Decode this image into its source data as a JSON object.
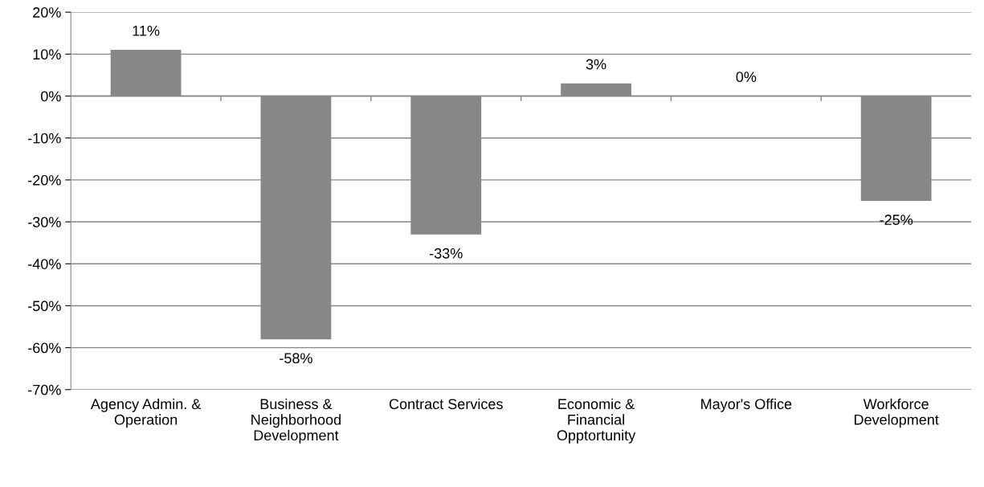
{
  "chart_data": {
    "type": "bar",
    "categories": [
      "Agency Admin. &\nOperation",
      "Business &\nNeighborhood\nDevelopment",
      "Contract Services",
      "Economic &\nFinancial\nOpptortunity",
      "Mayor's Office",
      "Workforce\nDevelopment"
    ],
    "values": [
      11,
      -58,
      -33,
      3,
      0,
      -25
    ],
    "value_labels": [
      "11%",
      "-58%",
      "-33%",
      "3%",
      "0%",
      "-25%"
    ],
    "color": "#878787",
    "ylim": [
      -70,
      20
    ],
    "yticks": [
      {
        "value": -70,
        "label": "-70%"
      },
      {
        "value": -60,
        "label": "-60%"
      },
      {
        "value": -50,
        "label": "-50%"
      },
      {
        "value": -40,
        "label": "-40%"
      },
      {
        "value": -30,
        "label": "-30%"
      },
      {
        "value": -20,
        "label": "-20%"
      },
      {
        "value": -10,
        "label": "-10%"
      },
      {
        "value": 0,
        "label": "0%"
      },
      {
        "value": 10,
        "label": "10%"
      },
      {
        "value": 20,
        "label": "20%"
      }
    ],
    "grid": "y"
  }
}
